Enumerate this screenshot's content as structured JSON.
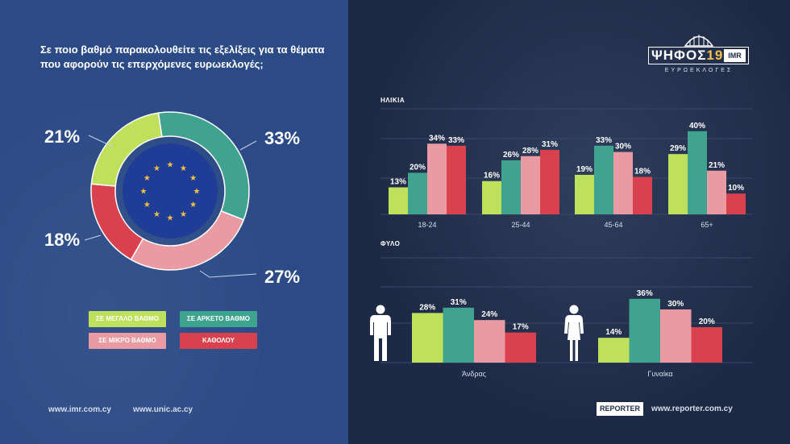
{
  "question": "Σε ποιο βαθμό παρακολουθείτε τις εξελίξεις για τα θέματα που αφορούν τις επερχόμενες ευρωεκλογές;",
  "logo": {
    "main_text": "ΨΗΦΟΣ",
    "number": "19",
    "imr": "IMR",
    "sub": "ΕΥΡΩΕΚΛΟΓΕΣ"
  },
  "legend": [
    {
      "label": "ΣΕ ΜΕΓΑΛΟ ΒΑΘΜΟ",
      "color": "#bfe05a"
    },
    {
      "label": "ΣΕ ΑΡΚΕΤΟ ΒΑΘΜΟ",
      "color": "#3fa38f"
    },
    {
      "label": "ΣΕ ΜΙΚΡΟ ΒΑΘΜΟ",
      "color": "#e99aa3"
    },
    {
      "label": "ΚΑΘΟΛΟΥ",
      "color": "#d9414f"
    }
  ],
  "footer": {
    "imr_url": "www.imr.com.cy",
    "unic_url": "www.unic.ac.cy",
    "reporter_logo": "REPORTER",
    "reporter_url": "www.reporter.com.cy"
  },
  "chart_data": [
    {
      "type": "pie",
      "categories": [
        "ΣΕ ΜΕΓΑΛΟ ΒΑΘΜΟ",
        "ΣΕ ΑΡΚΕΤΟ ΒΑΘΜΟ",
        "ΣΕ ΜΙΚΡΟ ΒΑΘΜΟ",
        "ΚΑΘΟΛΟΥ"
      ],
      "values": [
        21,
        33,
        27,
        18
      ],
      "labels": [
        "21%",
        "33%",
        "27%",
        "18%"
      ],
      "colors": [
        "#bfe05a",
        "#3fa38f",
        "#e99aa3",
        "#d9414f"
      ]
    },
    {
      "type": "bar",
      "title": "ΗΛΙΚΙΑ",
      "categories": [
        "18-24",
        "25-44",
        "45-64",
        "65+"
      ],
      "series": [
        {
          "name": "ΣΕ ΜΕΓΑΛΟ ΒΑΘΜΟ",
          "values": [
            13,
            16,
            19,
            29
          ]
        },
        {
          "name": "ΣΕ ΑΡΚΕΤΟ ΒΑΘΜΟ",
          "values": [
            20,
            26,
            33,
            40
          ]
        },
        {
          "name": "ΣΕ ΜΙΚΡΟ ΒΑΘΜΟ",
          "values": [
            34,
            28,
            30,
            21
          ]
        },
        {
          "name": "ΚΑΘΟΛΟΥ",
          "values": [
            33,
            31,
            18,
            10
          ]
        }
      ],
      "ylim": [
        0,
        45
      ],
      "grid": true
    },
    {
      "type": "bar",
      "title": "ΦΥΛΟ",
      "categories": [
        "Άνδρας",
        "Γυναίκα"
      ],
      "series": [
        {
          "name": "ΣΕ ΜΕΓΑΛΟ ΒΑΘΜΟ",
          "values": [
            28,
            14
          ]
        },
        {
          "name": "ΣΕ ΑΡΚΕΤΟ ΒΑΘΜΟ",
          "values": [
            31,
            36
          ]
        },
        {
          "name": "ΣΕ ΜΙΚΡΟ ΒΑΘΜΟ",
          "values": [
            24,
            30
          ]
        },
        {
          "name": "ΚΑΘΟΛΟΥ",
          "values": [
            17,
            20
          ]
        }
      ],
      "ylim": [
        0,
        45
      ],
      "grid": true
    }
  ]
}
